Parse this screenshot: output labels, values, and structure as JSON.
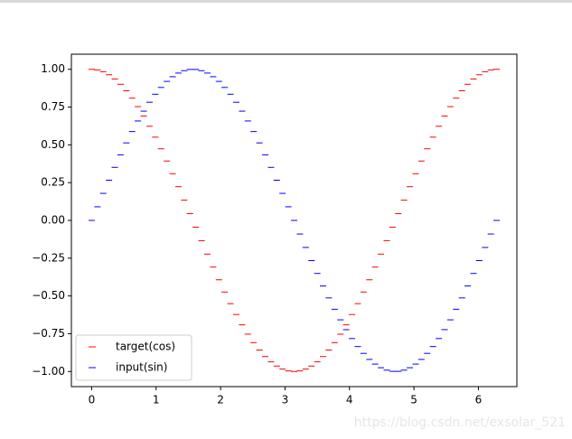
{
  "chart_data": {
    "type": "scatter",
    "marker": "hline",
    "x": [
      0,
      0.09,
      0.18,
      0.269,
      0.359,
      0.449,
      0.539,
      0.628,
      0.718,
      0.808,
      0.898,
      0.987,
      1.077,
      1.167,
      1.257,
      1.346,
      1.436,
      1.526,
      1.616,
      1.705,
      1.795,
      1.885,
      1.975,
      2.064,
      2.154,
      2.244,
      2.334,
      2.424,
      2.513,
      2.603,
      2.693,
      2.783,
      2.872,
      2.962,
      3.052,
      3.142,
      3.231,
      3.321,
      3.411,
      3.501,
      3.59,
      3.68,
      3.77,
      3.86,
      3.949,
      4.039,
      4.129,
      4.219,
      4.309,
      4.398,
      4.488,
      4.578,
      4.668,
      4.757,
      4.847,
      4.937,
      5.027,
      5.116,
      5.206,
      5.296,
      5.386,
      5.475,
      5.565,
      5.655,
      5.745,
      5.834,
      5.924,
      6.014,
      6.104,
      6.193,
      6.283
    ],
    "series": [
      {
        "name": "target(cos)",
        "color": "#ff0000",
        "values": [
          1,
          0.996,
          0.984,
          0.964,
          0.936,
          0.901,
          0.858,
          0.809,
          0.753,
          0.691,
          0.623,
          0.551,
          0.474,
          0.393,
          0.309,
          0.223,
          0.134,
          0.045,
          -0.045,
          -0.134,
          -0.223,
          -0.309,
          -0.393,
          -0.474,
          -0.551,
          -0.623,
          -0.691,
          -0.753,
          -0.809,
          -0.858,
          -0.901,
          -0.936,
          -0.964,
          -0.984,
          -0.996,
          -1,
          -0.996,
          -0.984,
          -0.964,
          -0.936,
          -0.901,
          -0.858,
          -0.809,
          -0.753,
          -0.691,
          -0.623,
          -0.551,
          -0.474,
          -0.393,
          -0.309,
          -0.223,
          -0.134,
          -0.045,
          0.045,
          0.134,
          0.223,
          0.309,
          0.393,
          0.474,
          0.551,
          0.623,
          0.691,
          0.753,
          0.809,
          0.858,
          0.901,
          0.936,
          0.964,
          0.984,
          0.996,
          1
        ]
      },
      {
        "name": "input(sin)",
        "color": "#0000ff",
        "values": [
          0,
          0.09,
          0.179,
          0.266,
          0.351,
          0.434,
          0.513,
          0.588,
          0.658,
          0.723,
          0.782,
          0.835,
          0.88,
          0.92,
          0.951,
          0.975,
          0.991,
          0.999,
          0.999,
          0.991,
          0.975,
          0.951,
          0.92,
          0.88,
          0.835,
          0.782,
          0.723,
          0.658,
          0.588,
          0.513,
          0.434,
          0.351,
          0.266,
          0.179,
          0.09,
          0,
          -0.09,
          -0.179,
          -0.266,
          -0.351,
          -0.434,
          -0.513,
          -0.588,
          -0.658,
          -0.723,
          -0.782,
          -0.835,
          -0.88,
          -0.92,
          -0.951,
          -0.975,
          -0.991,
          -0.999,
          -0.999,
          -0.991,
          -0.975,
          -0.951,
          -0.92,
          -0.88,
          -0.835,
          -0.782,
          -0.723,
          -0.658,
          -0.588,
          -0.513,
          -0.434,
          -0.351,
          -0.266,
          -0.179,
          -0.09,
          0
        ]
      }
    ],
    "xlim": [
      -0.314,
      6.597
    ],
    "xticks": [
      0,
      1,
      2,
      3,
      4,
      5,
      6
    ],
    "ylim": [
      -1.1,
      1.1
    ],
    "yticks": [
      {
        "value": -1,
        "label": "−1.00"
      },
      {
        "value": -0.75,
        "label": "−0.75"
      },
      {
        "value": -0.5,
        "label": "−0.50"
      },
      {
        "value": -0.25,
        "label": "−0.25"
      },
      {
        "value": 0,
        "label": "0.00"
      },
      {
        "value": 0.25,
        "label": "0.25"
      },
      {
        "value": 0.5,
        "label": "0.50"
      },
      {
        "value": 0.75,
        "label": "0.75"
      },
      {
        "value": 1,
        "label": "1.00"
      }
    ],
    "grid": false,
    "legend": "lower left",
    "watermark": "https://blog.csdn.net/exsolar_521"
  }
}
